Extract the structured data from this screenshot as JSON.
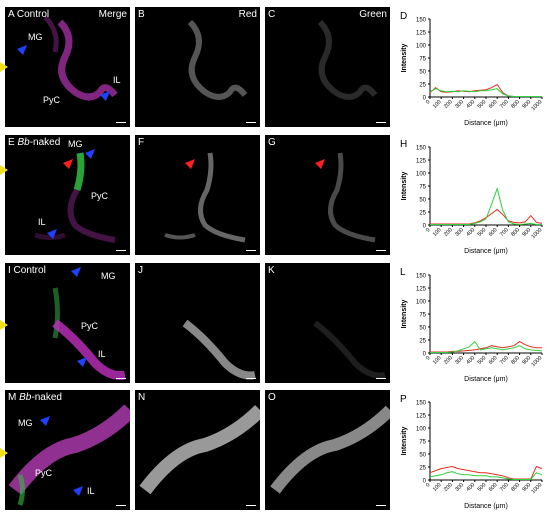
{
  "rows": [
    {
      "merge_label": "A Control",
      "red_label": "B",
      "green_label": "C",
      "chart_label": "D",
      "tissue_labels": {
        "mg": "MG",
        "pyc": "PyC",
        "il": "IL"
      }
    },
    {
      "merge_label_letter": "E",
      "merge_label_italic": "Bb",
      "merge_label_rest": "-naked",
      "red_label": "F",
      "green_label": "G",
      "chart_label": "H",
      "tissue_labels": {
        "mg": "MG",
        "pyc": "PyC",
        "il": "IL"
      }
    },
    {
      "merge_label": "I Control",
      "red_label": "J",
      "green_label": "K",
      "chart_label": "L",
      "tissue_labels": {
        "mg": "MG",
        "pyc": "PyC",
        "il": "IL"
      }
    },
    {
      "merge_label_letter": "M",
      "merge_label_italic": "Bb",
      "merge_label_rest": "-naked",
      "red_label": "N",
      "green_label": "O",
      "chart_label": "P",
      "tissue_labels": {
        "mg": "MG",
        "pyc": "PyC",
        "il": "IL"
      }
    }
  ],
  "channel_titles": {
    "merge": "Merge",
    "red": "Red",
    "green": "Green"
  },
  "colors": {
    "red_line": "#e03020",
    "green_line": "#30d040",
    "magenta": "#c040c0",
    "arrow_blue": "#2040ff",
    "arrow_red": "#ff2020",
    "arrow_yellow": "#f0e020"
  },
  "chart_data": [
    {
      "type": "line",
      "xlabel": "Distance (μm)",
      "ylabel": "Intensity",
      "xlim": [
        0,
        1000
      ],
      "ylim": [
        0,
        150
      ],
      "xticks": [
        "0",
        "100",
        "200",
        "300",
        "400",
        "500",
        "600",
        "700",
        "800",
        "900",
        "1000"
      ],
      "yticks": [
        "0",
        "25",
        "50",
        "75",
        "100",
        "125",
        "150"
      ],
      "x": [
        0,
        50,
        100,
        150,
        200,
        250,
        300,
        350,
        400,
        450,
        500,
        550,
        600,
        650,
        700,
        750,
        800,
        850,
        900,
        950,
        1000
      ],
      "series": [
        {
          "color": "#e03020",
          "values": [
            8,
            18,
            10,
            9,
            10,
            12,
            11,
            10,
            12,
            13,
            14,
            18,
            24,
            8,
            2,
            1,
            1,
            1,
            1,
            1,
            1
          ]
        },
        {
          "color": "#30d040",
          "values": [
            10,
            16,
            12,
            10,
            11,
            10,
            12,
            11,
            10,
            12,
            12,
            14,
            16,
            6,
            2,
            1,
            1,
            1,
            1,
            1,
            1
          ]
        }
      ]
    },
    {
      "type": "line",
      "xlabel": "Distance (μm)",
      "ylabel": "Intensity",
      "xlim": [
        0,
        1000
      ],
      "ylim": [
        0,
        150
      ],
      "xticks": [
        "0",
        "100",
        "200",
        "300",
        "400",
        "500",
        "600",
        "700",
        "800",
        "900",
        "1000"
      ],
      "yticks": [
        "0",
        "25",
        "50",
        "75",
        "100",
        "125",
        "150"
      ],
      "x": [
        0,
        50,
        100,
        150,
        200,
        250,
        300,
        350,
        400,
        450,
        500,
        550,
        600,
        650,
        700,
        750,
        800,
        850,
        900,
        950,
        1000
      ],
      "series": [
        {
          "color": "#e03020",
          "values": [
            2,
            2,
            2,
            2,
            2,
            2,
            2,
            2,
            4,
            8,
            14,
            22,
            30,
            20,
            8,
            5,
            4,
            6,
            18,
            5,
            3
          ]
        },
        {
          "color": "#30d040",
          "values": [
            1,
            1,
            1,
            1,
            1,
            1,
            1,
            1,
            3,
            6,
            12,
            40,
            70,
            28,
            6,
            2,
            1,
            2,
            3,
            1,
            1
          ]
        }
      ]
    },
    {
      "type": "line",
      "xlabel": "Distance (μm)",
      "ylabel": "Intensity",
      "xlim": [
        0,
        1000
      ],
      "ylim": [
        0,
        150
      ],
      "xticks": [
        "0",
        "100",
        "200",
        "300",
        "400",
        "500",
        "600",
        "700",
        "800",
        "900",
        "1000"
      ],
      "yticks": [
        "0",
        "25",
        "50",
        "75",
        "100",
        "125",
        "150"
      ],
      "x": [
        0,
        50,
        100,
        150,
        200,
        250,
        300,
        350,
        400,
        450,
        500,
        550,
        600,
        650,
        700,
        750,
        800,
        850,
        900,
        950,
        1000
      ],
      "series": [
        {
          "color": "#e03020",
          "values": [
            2,
            2,
            2,
            2,
            3,
            3,
            4,
            5,
            6,
            8,
            10,
            14,
            12,
            10,
            12,
            14,
            22,
            16,
            12,
            10,
            10
          ]
        },
        {
          "color": "#30d040",
          "values": [
            1,
            1,
            1,
            1,
            2,
            4,
            8,
            12,
            22,
            6,
            8,
            10,
            8,
            6,
            8,
            10,
            14,
            8,
            6,
            5,
            4
          ]
        }
      ]
    },
    {
      "type": "line",
      "xlabel": "Distance (μm)",
      "ylabel": "Intensity",
      "xlim": [
        0,
        1000
      ],
      "ylim": [
        0,
        150
      ],
      "xticks": [
        "0",
        "100",
        "200",
        "300",
        "400",
        "500",
        "600",
        "700",
        "800",
        "900",
        "1000"
      ],
      "yticks": [
        "0",
        "25",
        "50",
        "75",
        "100",
        "125",
        "150"
      ],
      "x": [
        0,
        50,
        100,
        150,
        200,
        250,
        300,
        350,
        400,
        450,
        500,
        550,
        600,
        650,
        700,
        750,
        800,
        850,
        900,
        950,
        1000
      ],
      "series": [
        {
          "color": "#e03020",
          "values": [
            14,
            18,
            22,
            24,
            26,
            22,
            20,
            18,
            16,
            14,
            14,
            12,
            10,
            8,
            4,
            2,
            2,
            2,
            2,
            26,
            22
          ]
        },
        {
          "color": "#30d040",
          "values": [
            6,
            8,
            10,
            14,
            16,
            12,
            10,
            10,
            8,
            8,
            8,
            6,
            6,
            4,
            2,
            1,
            1,
            1,
            1,
            14,
            10
          ]
        }
      ]
    }
  ]
}
